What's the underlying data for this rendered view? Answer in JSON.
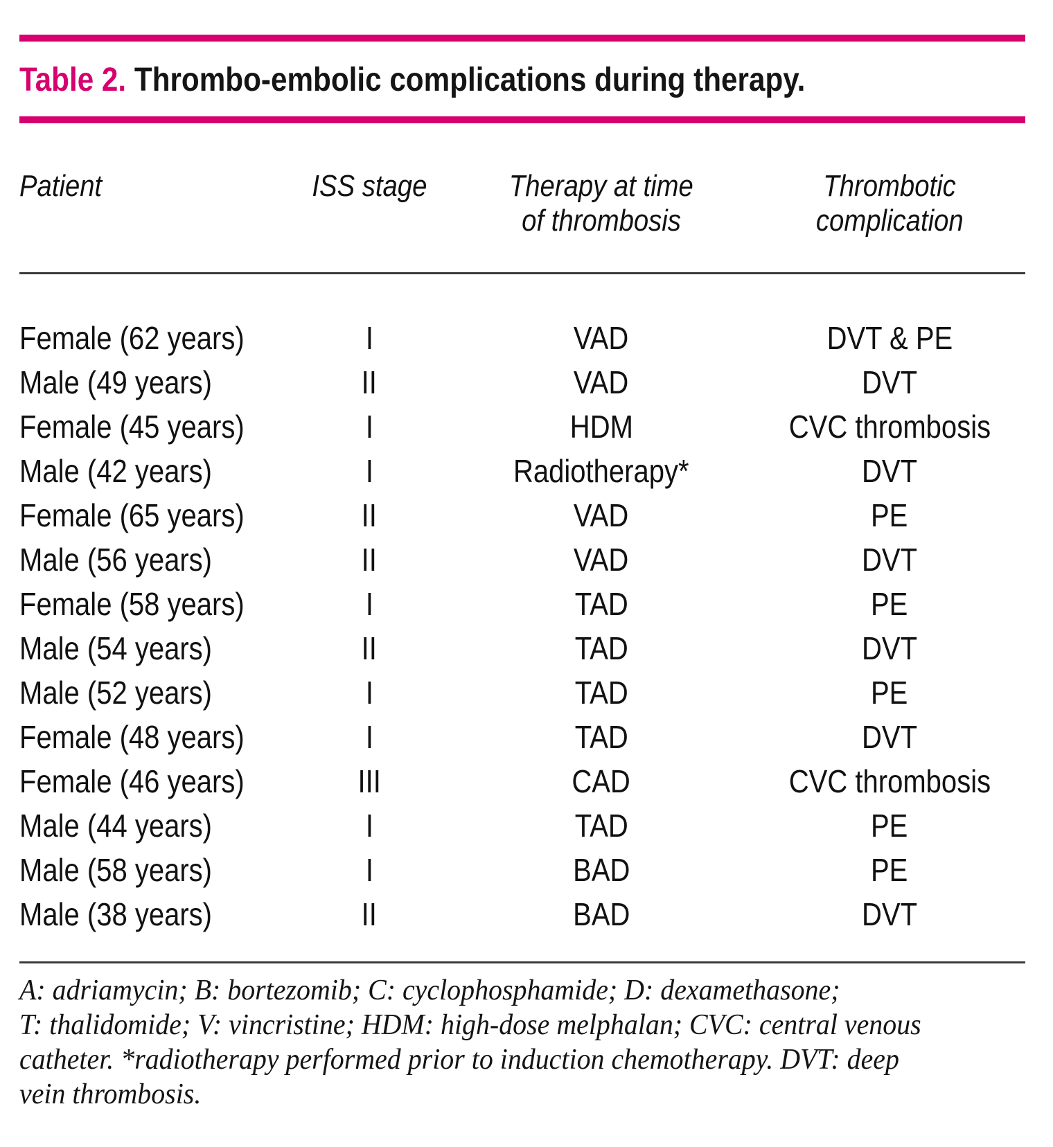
{
  "colors": {
    "accent_pink": "#d6006e",
    "rule_gray": "#3a3a3a",
    "text": "#111111"
  },
  "title": {
    "label": "Table 2.",
    "text": "Thrombo-embolic complications during therapy."
  },
  "header": {
    "col1": {
      "line1": "Patient"
    },
    "col2": {
      "line1": "ISS stage"
    },
    "col3": {
      "line1": "Therapy at time",
      "line2": "of thrombosis"
    },
    "col4": {
      "line1": "Thrombotic",
      "line2": "complication"
    }
  },
  "rows": [
    {
      "patient": "Female (62 years)",
      "iss": "I",
      "therapy": "VAD",
      "complication": "DVT & PE"
    },
    {
      "patient": "Male (49 years)",
      "iss": "II",
      "therapy": "VAD",
      "complication": "DVT"
    },
    {
      "patient": "Female (45 years)",
      "iss": "I",
      "therapy": "HDM",
      "complication": "CVC thrombosis"
    },
    {
      "patient": "Male (42 years)",
      "iss": "I",
      "therapy": "Radiotherapy*",
      "complication": "DVT"
    },
    {
      "patient": "Female (65 years)",
      "iss": "II",
      "therapy": "VAD",
      "complication": "PE"
    },
    {
      "patient": "Male (56 years)",
      "iss": "II",
      "therapy": "VAD",
      "complication": "DVT"
    },
    {
      "patient": "Female (58 years)",
      "iss": "I",
      "therapy": "TAD",
      "complication": "PE"
    },
    {
      "patient": "Male (54 years)",
      "iss": "II",
      "therapy": "TAD",
      "complication": "DVT"
    },
    {
      "patient": "Male (52 years)",
      "iss": "I",
      "therapy": "TAD",
      "complication": "PE"
    },
    {
      "patient": "Female (48 years)",
      "iss": "I",
      "therapy": "TAD",
      "complication": "DVT"
    },
    {
      "patient": "Female (46 years)",
      "iss": "III",
      "therapy": "CAD",
      "complication": "CVC thrombosis"
    },
    {
      "patient": "Male (44 years)",
      "iss": "I",
      "therapy": "TAD",
      "complication": "PE"
    },
    {
      "patient": "Male (58 years)",
      "iss": "I",
      "therapy": "BAD",
      "complication": "PE"
    },
    {
      "patient": "Male (38 years)",
      "iss": "II",
      "therapy": "BAD",
      "complication": "DVT"
    }
  ],
  "footnote": {
    "lines": [
      "A: adriamycin; B: bortezomib; C: cyclophosphamide; D: dexamethasone;",
      "T: thalidomide; V: vincristine; HDM: high-dose melphalan; CVC: central venous",
      "catheter. *radiotherapy performed prior to induction chemotherapy. DVT: deep",
      "vein thrombosis."
    ]
  }
}
